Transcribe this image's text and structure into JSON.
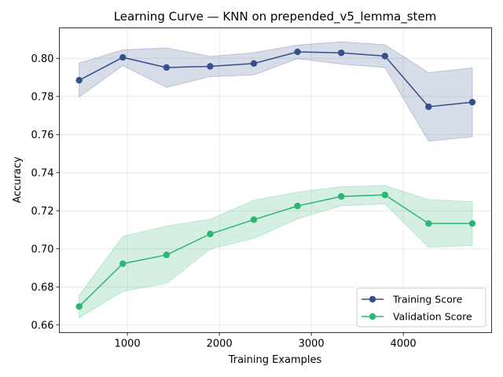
{
  "chart_data": {
    "type": "line",
    "title": "Learning Curve — KNN on prepended_v5_lemma_stem",
    "xlabel": "Training Examples",
    "ylabel": "Accuracy",
    "xlim": [
      260,
      4960
    ],
    "ylim": [
      0.656,
      0.816
    ],
    "xticks": [
      1000,
      2000,
      3000,
      4000
    ],
    "xtick_labels": [
      "1000",
      "2000",
      "3000",
      "4000"
    ],
    "yticks": [
      0.66,
      0.68,
      0.7,
      0.72,
      0.74,
      0.76,
      0.78,
      0.8
    ],
    "ytick_labels": [
      "0.66",
      "0.68",
      "0.70",
      "0.72",
      "0.74",
      "0.76",
      "0.78",
      "0.80"
    ],
    "grid": true,
    "legend_position": "lower-right",
    "x": [
      475,
      950,
      1425,
      1900,
      2375,
      2850,
      3325,
      3800,
      4275,
      4750
    ],
    "series": [
      {
        "name": "Training Score",
        "color": "#34508c",
        "band_color": "#34508c",
        "values": [
          0.7885,
          0.8005,
          0.7952,
          0.7958,
          0.7973,
          0.8034,
          0.8029,
          0.8012,
          0.7746,
          0.777
        ],
        "upper": [
          0.7975,
          0.8045,
          0.8055,
          0.801,
          0.803,
          0.807,
          0.8087,
          0.8072,
          0.7925,
          0.795
        ],
        "lower": [
          0.7797,
          0.7962,
          0.7848,
          0.7904,
          0.7913,
          0.7998,
          0.797,
          0.7952,
          0.7565,
          0.7588
        ]
      },
      {
        "name": "Validation Score",
        "color": "#2bb673",
        "band_color": "#2bb673",
        "values": [
          0.6697,
          0.6922,
          0.6968,
          0.7078,
          0.7153,
          0.7225,
          0.7275,
          0.7283,
          0.7133,
          0.7133
        ],
        "upper": [
          0.6755,
          0.7065,
          0.712,
          0.7155,
          0.7255,
          0.7298,
          0.7326,
          0.7332,
          0.7258,
          0.7248
        ],
        "lower": [
          0.6638,
          0.6777,
          0.6818,
          0.6998,
          0.7055,
          0.7157,
          0.7226,
          0.7236,
          0.7008,
          0.7018
        ]
      }
    ]
  }
}
